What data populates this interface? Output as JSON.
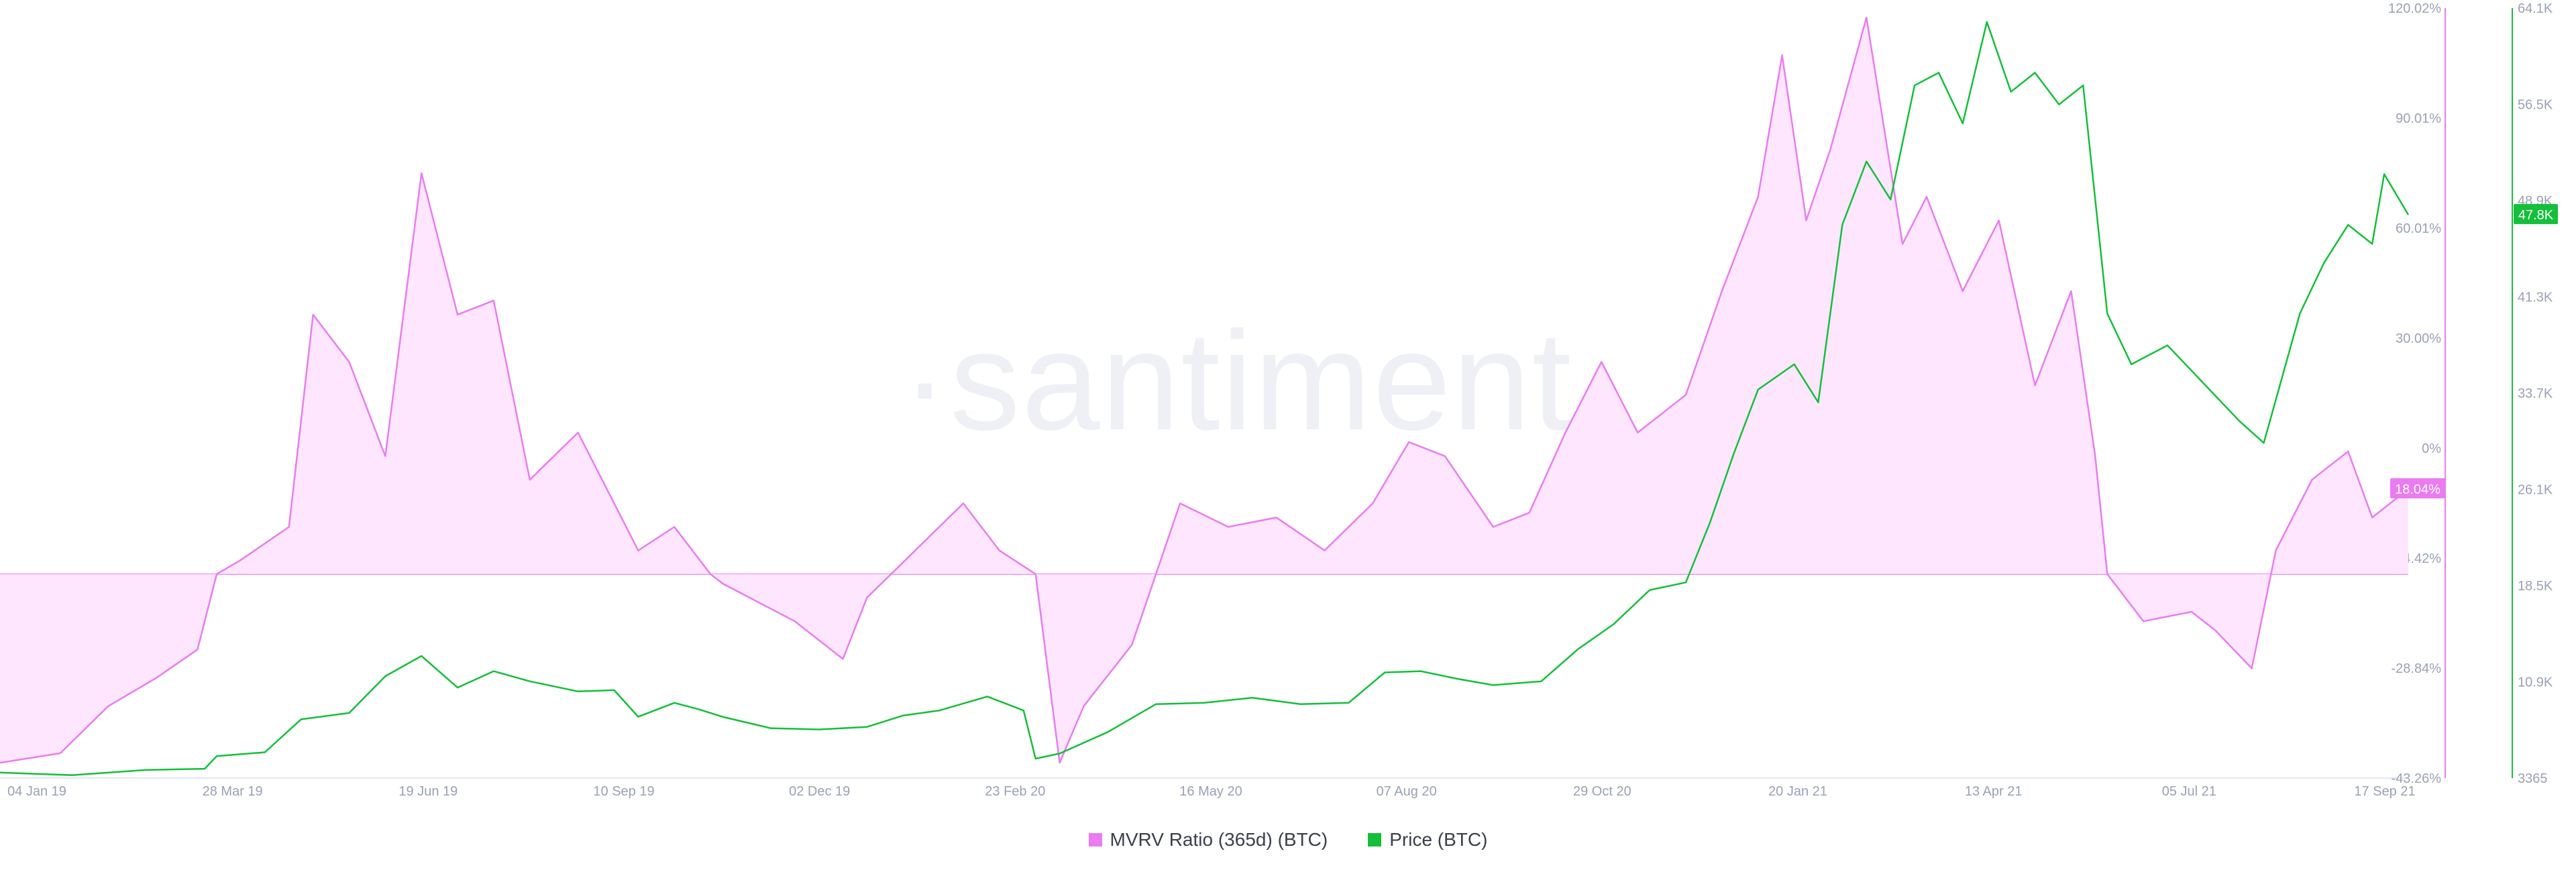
{
  "watermark": "·santiment·",
  "colors": {
    "mvrv": "#ea7cf0",
    "mvrv_fill": "#fde6fe",
    "price": "#14bf3a",
    "axis_text": "#9aa1b5",
    "axis_line": "#e3e6ee"
  },
  "chart_data": {
    "type": "line",
    "x_tick_labels": [
      "04 Jan 19",
      "28 Mar 19",
      "19 Jun 19",
      "10 Sep 19",
      "02 Dec 19",
      "23 Feb 20",
      "16 May 20",
      "07 Aug 20",
      "29 Oct 20",
      "20 Jan 21",
      "13 Apr 21",
      "05 Jul 21",
      "17 Sep 21"
    ],
    "x_range": [
      "04 Jan 19",
      "17 Sep 21"
    ],
    "y_left": {
      "unit": "%",
      "tick_labels": [
        "120.02%",
        "90.01%",
        "60.01%",
        "30.00%",
        "0%",
        "-14.42%",
        "-28.84%",
        "-43.26%"
      ],
      "range": [
        -43.26,
        120.02
      ]
    },
    "y_right": {
      "unit": "USD",
      "tick_labels": [
        "64.1K",
        "56.5K",
        "48.9K",
        "41.3K",
        "33.7K",
        "26.1K",
        "18.5K",
        "10.9K",
        "3365"
      ],
      "range": [
        3365,
        64100
      ]
    },
    "last_value_labels": {
      "mvrv": "18.04%",
      "price": "47.8K"
    },
    "series": [
      {
        "name": "MVRV Ratio (365d) (BTC)",
        "axis": "left",
        "style": "area",
        "points": [
          [
            0,
            -40
          ],
          [
            0.025,
            -38
          ],
          [
            0.045,
            -28
          ],
          [
            0.065,
            -22
          ],
          [
            0.082,
            -16
          ],
          [
            0.09,
            0
          ],
          [
            0.1,
            3
          ],
          [
            0.12,
            10
          ],
          [
            0.13,
            55
          ],
          [
            0.145,
            45
          ],
          [
            0.16,
            25
          ],
          [
            0.175,
            85
          ],
          [
            0.19,
            55
          ],
          [
            0.205,
            58
          ],
          [
            0.22,
            20
          ],
          [
            0.24,
            30
          ],
          [
            0.265,
            5
          ],
          [
            0.28,
            10
          ],
          [
            0.295,
            0
          ],
          [
            0.3,
            -2
          ],
          [
            0.33,
            -10
          ],
          [
            0.35,
            -18
          ],
          [
            0.36,
            -5
          ],
          [
            0.38,
            5
          ],
          [
            0.4,
            15
          ],
          [
            0.415,
            5
          ],
          [
            0.43,
            0
          ],
          [
            0.44,
            -40
          ],
          [
            0.45,
            -28
          ],
          [
            0.47,
            -15
          ],
          [
            0.49,
            15
          ],
          [
            0.51,
            10
          ],
          [
            0.53,
            12
          ],
          [
            0.55,
            5
          ],
          [
            0.57,
            15
          ],
          [
            0.585,
            28
          ],
          [
            0.6,
            25
          ],
          [
            0.62,
            10
          ],
          [
            0.635,
            13
          ],
          [
            0.65,
            30
          ],
          [
            0.665,
            45
          ],
          [
            0.68,
            30
          ],
          [
            0.7,
            38
          ],
          [
            0.715,
            60
          ],
          [
            0.73,
            80
          ],
          [
            0.74,
            110
          ],
          [
            0.75,
            75
          ],
          [
            0.76,
            90
          ],
          [
            0.775,
            118
          ],
          [
            0.79,
            70
          ],
          [
            0.8,
            80
          ],
          [
            0.815,
            60
          ],
          [
            0.83,
            75
          ],
          [
            0.845,
            40
          ],
          [
            0.86,
            60
          ],
          [
            0.87,
            25
          ],
          [
            0.875,
            0
          ],
          [
            0.89,
            -10
          ],
          [
            0.91,
            -8
          ],
          [
            0.92,
            -12
          ],
          [
            0.935,
            -20
          ],
          [
            0.945,
            5
          ],
          [
            0.96,
            20
          ],
          [
            0.975,
            26
          ],
          [
            0.985,
            12
          ],
          [
            1.0,
            18.04
          ]
        ]
      },
      {
        "name": "Price (BTC)",
        "axis": "right",
        "style": "line",
        "points": [
          [
            0,
            3800
          ],
          [
            0.03,
            3600
          ],
          [
            0.06,
            4000
          ],
          [
            0.085,
            4100
          ],
          [
            0.09,
            5100
          ],
          [
            0.11,
            5400
          ],
          [
            0.125,
            8000
          ],
          [
            0.145,
            8500
          ],
          [
            0.16,
            11400
          ],
          [
            0.175,
            13000
          ],
          [
            0.19,
            10500
          ],
          [
            0.205,
            11800
          ],
          [
            0.22,
            11000
          ],
          [
            0.24,
            10200
          ],
          [
            0.255,
            10300
          ],
          [
            0.265,
            8200
          ],
          [
            0.28,
            9300
          ],
          [
            0.29,
            8800
          ],
          [
            0.3,
            8200
          ],
          [
            0.32,
            7300
          ],
          [
            0.34,
            7200
          ],
          [
            0.36,
            7400
          ],
          [
            0.375,
            8300
          ],
          [
            0.39,
            8700
          ],
          [
            0.41,
            9800
          ],
          [
            0.425,
            8700
          ],
          [
            0.43,
            4900
          ],
          [
            0.44,
            5300
          ],
          [
            0.46,
            7000
          ],
          [
            0.48,
            9200
          ],
          [
            0.5,
            9300
          ],
          [
            0.52,
            9700
          ],
          [
            0.54,
            9200
          ],
          [
            0.56,
            9300
          ],
          [
            0.575,
            11700
          ],
          [
            0.59,
            11800
          ],
          [
            0.605,
            11200
          ],
          [
            0.62,
            10700
          ],
          [
            0.64,
            11000
          ],
          [
            0.655,
            13500
          ],
          [
            0.67,
            15500
          ],
          [
            0.685,
            18200
          ],
          [
            0.7,
            18800
          ],
          [
            0.71,
            23500
          ],
          [
            0.72,
            29000
          ],
          [
            0.73,
            34000
          ],
          [
            0.745,
            36000
          ],
          [
            0.755,
            33000
          ],
          [
            0.765,
            47000
          ],
          [
            0.775,
            52000
          ],
          [
            0.785,
            49000
          ],
          [
            0.795,
            58000
          ],
          [
            0.805,
            59000
          ],
          [
            0.815,
            55000
          ],
          [
            0.825,
            63000
          ],
          [
            0.835,
            57500
          ],
          [
            0.845,
            59000
          ],
          [
            0.855,
            56500
          ],
          [
            0.865,
            58000
          ],
          [
            0.875,
            40000
          ],
          [
            0.885,
            36000
          ],
          [
            0.9,
            37500
          ],
          [
            0.915,
            34500
          ],
          [
            0.93,
            31500
          ],
          [
            0.94,
            29800
          ],
          [
            0.955,
            40000
          ],
          [
            0.965,
            44000
          ],
          [
            0.975,
            47000
          ],
          [
            0.985,
            45500
          ],
          [
            0.99,
            51000
          ],
          [
            1.0,
            47800
          ]
        ]
      }
    ],
    "grid": false,
    "legend_position": "bottom-center"
  },
  "legend": {
    "items": [
      {
        "label": "MVRV Ratio (365d) (BTC)",
        "color": "#ea7cf0"
      },
      {
        "label": "Price (BTC)",
        "color": "#14bf3a"
      }
    ]
  }
}
